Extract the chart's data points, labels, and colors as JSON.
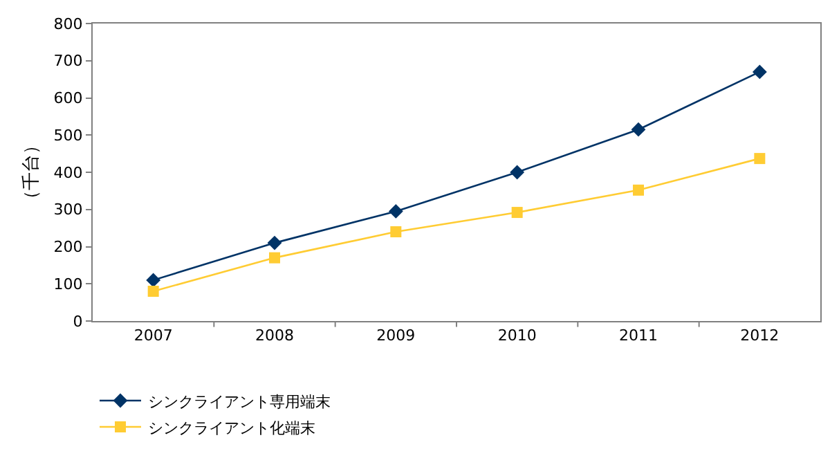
{
  "chart_data": {
    "type": "line",
    "ylabel": "（千台）",
    "categories": [
      "2007",
      "2008",
      "2009",
      "2010",
      "2011",
      "2012"
    ],
    "series": [
      {
        "name": "シンクライアント専用端末",
        "color": "#003366",
        "values": [
          110,
          210,
          295,
          400,
          515,
          670
        ],
        "marker": "diamond"
      },
      {
        "name": "シンクライアント化端末",
        "color": "#ffcc33",
        "values": [
          80,
          170,
          240,
          292,
          352,
          437
        ],
        "marker": "square"
      }
    ],
    "ylim": [
      0,
      800
    ],
    "yticks": [
      0,
      100,
      200,
      300,
      400,
      500,
      600,
      700,
      800
    ],
    "legend": "bottom",
    "line_style": "solid"
  }
}
